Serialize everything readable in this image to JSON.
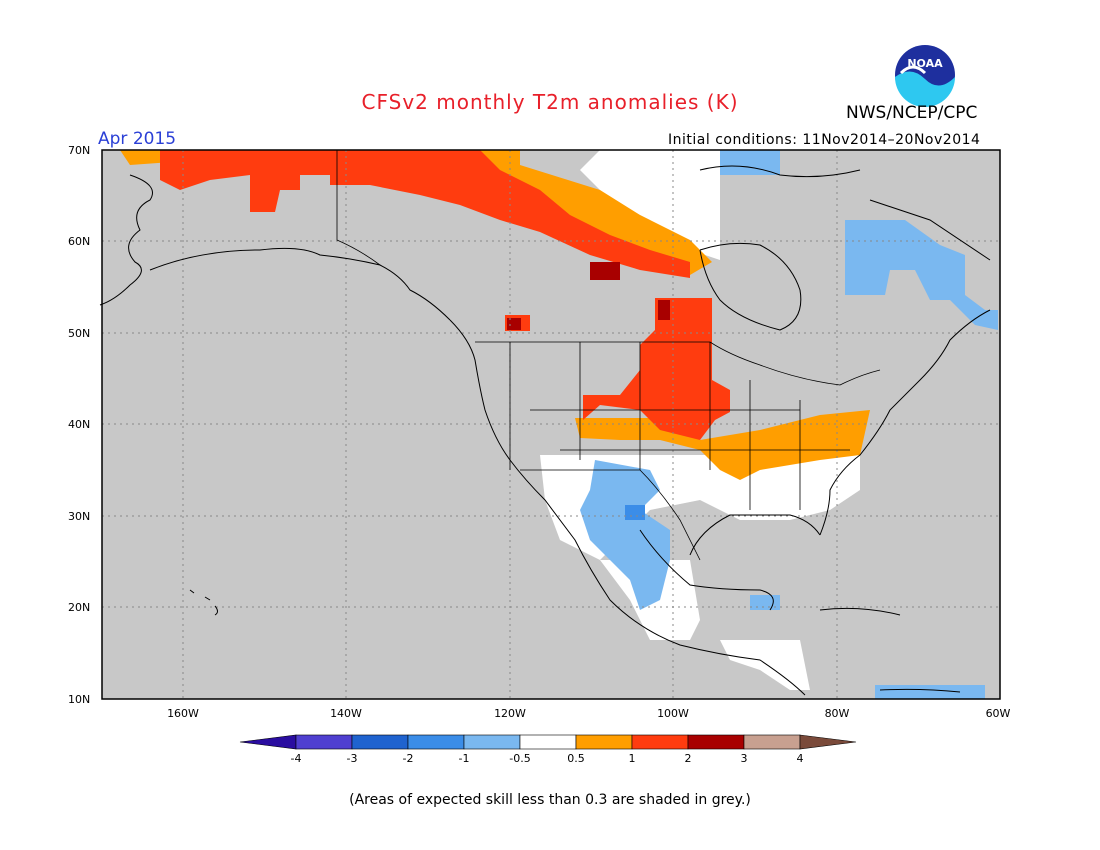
{
  "header": {
    "title": "CFSv2 monthly T2m anomalies (K)",
    "agency": "NWS/NCEP/CPC",
    "month": "Apr 2015",
    "initial_conditions": "Initial conditions: 11Nov2014–20Nov2014",
    "logo_text": "NOAA"
  },
  "map": {
    "lat_labels": [
      "70N",
      "60N",
      "50N",
      "40N",
      "30N",
      "20N",
      "10N"
    ],
    "lon_labels": [
      "160W",
      "140W",
      "120W",
      "100W",
      "80W",
      "60W"
    ],
    "extent": {
      "lon_min": -170,
      "lon_max": -60,
      "lat_min": 10,
      "lat_max": 70
    }
  },
  "colorbar": {
    "labels": [
      "-4",
      "-3",
      "-2",
      "-1",
      "-0.5",
      "0.5",
      "1",
      "2",
      "3",
      "4"
    ],
    "colors": [
      "#2a0da0",
      "#4f3fd0",
      "#1f63cf",
      "#3b8de8",
      "#7ab8f0",
      "#ffffff",
      "#ff9e00",
      "#ff3c0f",
      "#a80000",
      "#c8a090",
      "#7a4a3a"
    ]
  },
  "colors": {
    "skill_grey": "#c8c8c8",
    "border": "#000000",
    "title_red": "#e8202a",
    "month_blue": "#2a3fd6"
  },
  "footnote": "(Areas of expected skill less than 0.3 are shaded in grey.)"
}
